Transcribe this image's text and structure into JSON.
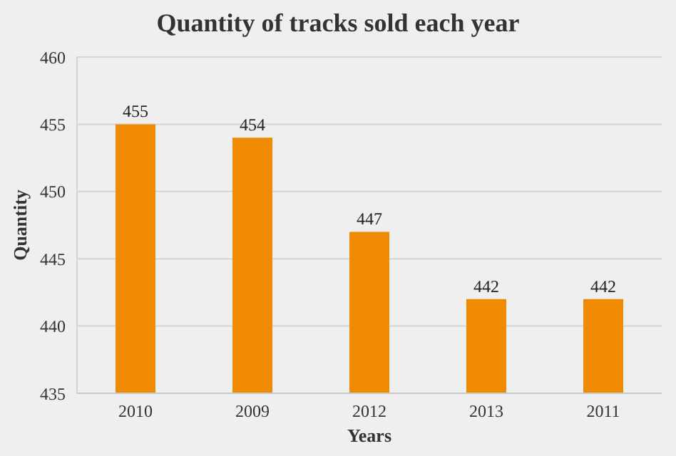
{
  "chart_data": {
    "type": "bar",
    "title": "Quantity of tracks sold each year",
    "xlabel": "Years",
    "ylabel": "Quantity",
    "categories": [
      "2010",
      "2009",
      "2012",
      "2013",
      "2011"
    ],
    "values": [
      455,
      454,
      447,
      442,
      442
    ],
    "color": "#f08a00",
    "ylim": [
      435,
      460
    ],
    "yticks": [
      435,
      440,
      445,
      450,
      455,
      460
    ],
    "grid": "y",
    "data_labels": true,
    "legend": false
  }
}
